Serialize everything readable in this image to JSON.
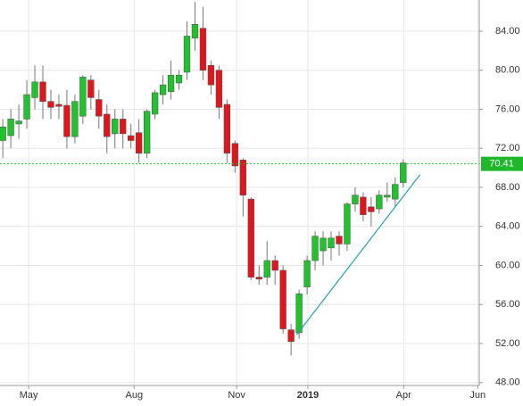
{
  "chart_data": {
    "type": "candlestick",
    "x": [
      0,
      1,
      2,
      3,
      4,
      5,
      6,
      7,
      8,
      9,
      10,
      11,
      12,
      13,
      14,
      15,
      16,
      17,
      18,
      19,
      20,
      21,
      22,
      23,
      24,
      25,
      26,
      27,
      28,
      29,
      30,
      31,
      32,
      33,
      34,
      35,
      36,
      37,
      38,
      39,
      40,
      41,
      42,
      43,
      44,
      45,
      46,
      47,
      48,
      49,
      50
    ],
    "open": [
      72.8,
      73.3,
      74.5,
      75.0,
      77.2,
      78.8,
      76.8,
      76.5,
      76.4,
      73.2,
      75.3,
      79.0,
      77.0,
      75.5,
      73.5,
      75.0,
      73.3,
      73.6,
      71.5,
      75.5,
      77.5,
      77.8,
      78.7,
      79.8,
      83.3,
      84.3,
      80.5,
      80.0,
      76.5,
      72.5,
      70.8,
      66.8,
      58.8,
      58.8,
      60.5,
      59.5,
      53.4,
      53.1,
      57.8,
      60.5,
      61.5,
      61.8,
      63.0,
      62.2,
      66.3,
      67.0,
      66.0,
      65.8,
      67.0,
      66.8,
      68.5
    ],
    "high": [
      75.0,
      76.0,
      76.5,
      79.0,
      80.5,
      80.5,
      78.0,
      77.5,
      78.0,
      77.5,
      79.5,
      79.5,
      78.0,
      76.5,
      76.0,
      76.0,
      74.5,
      75.0,
      76.0,
      78.0,
      79.5,
      81.0,
      80.0,
      85.0,
      87.0,
      86.5,
      81.0,
      80.5,
      77.0,
      72.8,
      71.0,
      67.0,
      60.0,
      62.5,
      61.0,
      60.0,
      54.0,
      57.5,
      61.0,
      63.5,
      63.5,
      63.5,
      63.5,
      66.5,
      68.0,
      67.5,
      67.0,
      67.7,
      68.5,
      69.0,
      70.9
    ],
    "low": [
      71.0,
      72.0,
      73.0,
      74.0,
      76.0,
      75.0,
      75.0,
      75.0,
      72.0,
      72.5,
      74.5,
      76.0,
      74.0,
      71.5,
      72.0,
      72.0,
      72.0,
      70.5,
      71.0,
      75.0,
      76.5,
      77.0,
      78.0,
      79.0,
      82.0,
      79.0,
      77.5,
      75.0,
      70.5,
      69.5,
      65.0,
      58.5,
      58.0,
      58.0,
      58.0,
      53.0,
      50.8,
      52.5,
      57.0,
      59.5,
      60.0,
      60.5,
      61.0,
      61.5,
      65.5,
      64.5,
      64.0,
      65.3,
      66.5,
      66.0,
      68.0
    ],
    "close": [
      74.2,
      75.0,
      74.8,
      77.5,
      78.8,
      76.8,
      76.2,
      76.3,
      73.2,
      76.8,
      79.3,
      77.2,
      75.3,
      73.2,
      75.0,
      73.5,
      72.8,
      71.5,
      75.8,
      77.7,
      78.5,
      79.5,
      79.5,
      83.5,
      84.7,
      80.0,
      78.5,
      76.2,
      71.5,
      70.2,
      67.2,
      58.8,
      58.6,
      60.5,
      59.5,
      53.5,
      52.2,
      57.1,
      60.5,
      63.0,
      62.8,
      62.8,
      62.2,
      66.3,
      67.2,
      65.2,
      65.5,
      67.2,
      67.2,
      68.3,
      70.5
    ],
    "up_color": "#1fc42c",
    "down_color": "#e3141c",
    "xlim": [
      -0.35,
      59.5
    ],
    "xticks": [
      {
        "value": 3.23,
        "label": "May"
      },
      {
        "value": 16.4,
        "label": "Aug"
      },
      {
        "value": 29.2,
        "label": "Nov"
      },
      {
        "value": 38.1,
        "label": "2019"
      },
      {
        "value": 50.05,
        "label": "Apr"
      },
      {
        "value": 59.3,
        "label": "Jun"
      }
    ],
    "ylim": [
      47.7,
      87.2
    ],
    "yticks": [
      {
        "value": 48,
        "label": "48.00"
      },
      {
        "value": 52,
        "label": "52.00"
      },
      {
        "value": 56,
        "label": "56.00"
      },
      {
        "value": 60,
        "label": "60.00"
      },
      {
        "value": 64,
        "label": "64.00"
      },
      {
        "value": 68,
        "label": "68.00"
      },
      {
        "value": 72,
        "label": "72.00"
      },
      {
        "value": 76,
        "label": "76.00"
      },
      {
        "value": 80,
        "label": "80.00"
      },
      {
        "value": 84,
        "label": "84.00"
      }
    ],
    "grid": true,
    "price_line": {
      "value": 70.41,
      "color": "#1fb82a"
    },
    "trendline": {
      "x": [
        36.7,
        52.1
      ],
      "y": [
        52.9,
        69.3
      ],
      "color": "#2a9fb0"
    }
  }
}
